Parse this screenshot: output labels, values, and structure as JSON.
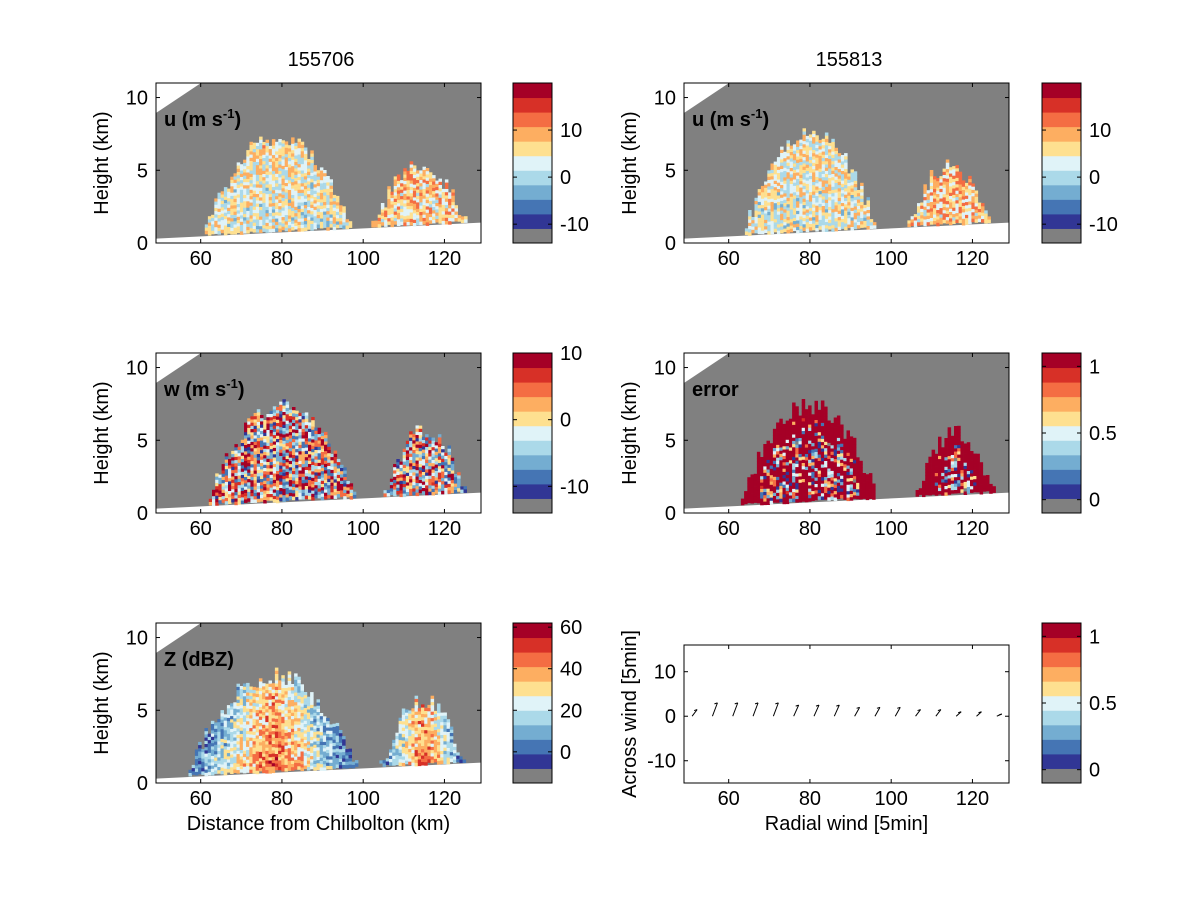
{
  "figure": {
    "titles": [
      "155706",
      "155813"
    ]
  },
  "colors": {
    "background_gray": "#808080",
    "below_ground": "#ffffff",
    "palette": [
      "#313695",
      "#4575b4",
      "#74add1",
      "#abd9e9",
      "#e0f3f8",
      "#fee090",
      "#fdae61",
      "#f46d43",
      "#d73027",
      "#a50026"
    ]
  },
  "chart_data": [
    {
      "type": "heatmap",
      "title": "155706",
      "label": "u (m s-1)",
      "label_main": "u (m s",
      "label_sup": "-1",
      "label_tail": ")",
      "xlabel": "",
      "ylabel": "Height (km)",
      "xlim": [
        49,
        129
      ],
      "ylim": [
        0,
        11
      ],
      "xticks": [
        "60",
        "80",
        "100",
        "120"
      ],
      "yticks": [
        "0",
        "5",
        "10"
      ],
      "colorbar": {
        "range": [
          -14,
          20
        ],
        "ticks": [
          "10",
          "0",
          "-10"
        ],
        "tick_values": [
          10,
          0,
          -10
        ],
        "lowest_color": "gray"
      },
      "echo_regions": [
        {
          "x_range": [
            61,
            97
          ],
          "top_km": 7.3,
          "mean_value": 3
        },
        {
          "x_range": [
            102,
            125
          ],
          "top_km": 5.5,
          "mean_value": 6
        }
      ],
      "grid": false
    },
    {
      "type": "heatmap",
      "title": "155813",
      "label": "u (m s-1)",
      "label_main": "u (m s",
      "label_sup": "-1",
      "label_tail": ")",
      "xlabel": "",
      "ylabel": "Height (km)",
      "xlim": [
        49,
        129
      ],
      "ylim": [
        0,
        11
      ],
      "xticks": [
        "60",
        "80",
        "100",
        "120"
      ],
      "yticks": [
        "0",
        "5",
        "10"
      ],
      "colorbar": {
        "range": [
          -14,
          20
        ],
        "ticks": [
          "10",
          "0",
          "-10"
        ],
        "tick_values": [
          10,
          0,
          -10
        ],
        "lowest_color": "gray"
      },
      "echo_regions": [
        {
          "x_range": [
            64,
            96
          ],
          "top_km": 7.4,
          "mean_value": 3
        },
        {
          "x_range": [
            104,
            124
          ],
          "top_km": 5.4,
          "mean_value": 6
        }
      ],
      "grid": false
    },
    {
      "type": "heatmap",
      "label": "w (m s-1)",
      "label_main": "w (m s",
      "label_sup": "-1",
      "label_tail": ")",
      "xlabel": "",
      "ylabel": "Height (km)",
      "xlim": [
        49,
        129
      ],
      "ylim": [
        0,
        11
      ],
      "xticks": [
        "60",
        "80",
        "100",
        "120"
      ],
      "yticks": [
        "0",
        "5",
        "10"
      ],
      "colorbar": {
        "range": [
          -14,
          10
        ],
        "ticks": [
          "10",
          "0",
          "-10"
        ],
        "tick_values": [
          10,
          0,
          -10
        ],
        "lowest_color": "gray"
      },
      "echo_regions": [
        {
          "x_range": [
            62,
            98
          ],
          "top_km": 7.4,
          "mean_value": 0
        },
        {
          "x_range": [
            105,
            125
          ],
          "top_km": 5.8,
          "mean_value": 0
        }
      ],
      "grid": false
    },
    {
      "type": "heatmap",
      "label": "error",
      "label_main": "error",
      "label_sup": "",
      "label_tail": "",
      "xlabel": "",
      "ylabel": "Height (km)",
      "xlim": [
        49,
        129
      ],
      "ylim": [
        0,
        11
      ],
      "xticks": [
        "60",
        "80",
        "100",
        "120"
      ],
      "yticks": [
        "0",
        "5",
        "10"
      ],
      "colorbar": {
        "range": [
          -0.1,
          1.1
        ],
        "ticks": [
          "1",
          "0.5",
          "0"
        ],
        "tick_values": [
          1,
          0.5,
          0
        ],
        "lowest_color": "gray"
      },
      "echo_regions": [
        {
          "x_range": [
            63,
            96
          ],
          "top_km": 7.4,
          "mean_value": 1
        },
        {
          "x_range": [
            106,
            125
          ],
          "top_km": 5.5,
          "mean_value": 1
        }
      ],
      "grid": false
    },
    {
      "type": "heatmap",
      "label": "Z (dBZ)",
      "label_main": "Z (dBZ)",
      "label_sup": "",
      "label_tail": "",
      "xlabel": "Distance from Chilbolton (km)",
      "ylabel": "Height (km)",
      "xlim": [
        49,
        129
      ],
      "ylim": [
        0,
        11
      ],
      "xticks": [
        "60",
        "80",
        "100",
        "120"
      ],
      "yticks": [
        "0",
        "5",
        "10"
      ],
      "colorbar": {
        "range": [
          -15,
          62
        ],
        "ticks": [
          "60",
          "40",
          "20",
          "0"
        ],
        "tick_values": [
          60,
          40,
          20,
          0
        ],
        "lowest_color": "gray"
      },
      "echo_regions": [
        {
          "x_range": [
            57,
            98
          ],
          "top_km": 7.4,
          "mean_value": 30
        },
        {
          "x_range": [
            104,
            125
          ],
          "top_km": 5.6,
          "mean_value": 25
        }
      ],
      "grid": false
    },
    {
      "type": "scatter",
      "label": "",
      "xlabel": "Radial wind [5min]",
      "ylabel": "Across wind [5min]",
      "xlim": [
        49,
        129
      ],
      "ylim": [
        -15,
        16
      ],
      "xticks": [
        "60",
        "80",
        "100",
        "120"
      ],
      "yticks": [
        "10",
        "0",
        "-10"
      ],
      "ytick_values": [
        10,
        0,
        -10
      ],
      "xtick_values": [
        60,
        80,
        100,
        120
      ],
      "colorbar": {
        "range": [
          -0.1,
          1.1
        ],
        "ticks": [
          "1",
          "0.5",
          "0"
        ],
        "tick_values": [
          1,
          0.5,
          0
        ],
        "lowest_color": "gray"
      },
      "arrows_x": [
        51,
        56,
        61,
        66,
        71,
        76,
        81,
        86,
        91,
        96,
        101,
        106,
        111,
        116,
        121,
        126
      ],
      "arrows_y": [
        0.3,
        0.6,
        0.6,
        0.6,
        0.6,
        0.5,
        0.5,
        0.5,
        0.4,
        0.4,
        0.4,
        0.3,
        0.3,
        0.2,
        0.2,
        0.1
      ],
      "grid": false
    }
  ]
}
